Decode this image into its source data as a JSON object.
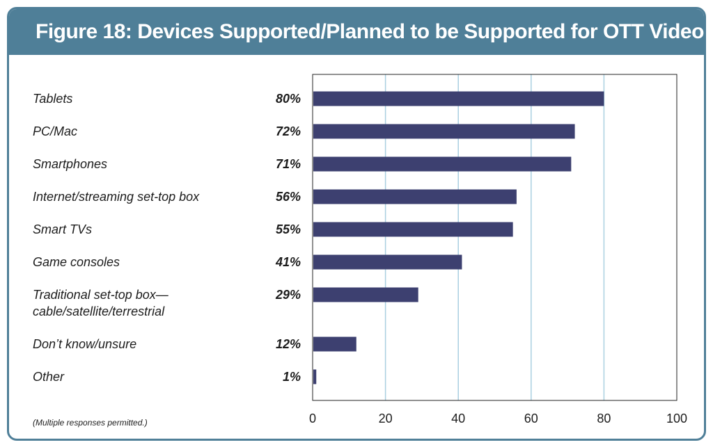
{
  "figure": {
    "title": "Figure 18:  Devices Supported/Planned to be Supported for OTT Video",
    "note": "(Multiple responses permitted.)"
  },
  "colors": {
    "header": "#4f7f98",
    "bar": "#3d4070",
    "grid": "#a9cfe0"
  },
  "chart_data": {
    "type": "bar",
    "orientation": "horizontal",
    "title": "Figure 18:  Devices Supported/Planned to be Supported for OTT Video",
    "categories": [
      [
        "Tablets"
      ],
      [
        "PC/Mac"
      ],
      [
        "Smartphones"
      ],
      [
        "Internet/streaming set-top box"
      ],
      [
        "Smart TVs"
      ],
      [
        "Game consoles"
      ],
      [
        "Traditional set-top box—",
        "cable/satellite/terrestrial"
      ],
      [
        "Don’t know/unsure"
      ],
      [
        "Other"
      ]
    ],
    "values": [
      80,
      72,
      71,
      56,
      55,
      41,
      29,
      12,
      1
    ],
    "value_labels": [
      "80%",
      "72%",
      "71%",
      "56%",
      "55%",
      "41%",
      "29%",
      "12%",
      "1%"
    ],
    "xlim": [
      0,
      100
    ],
    "xticks": [
      0,
      20,
      40,
      60,
      80,
      100
    ],
    "grid": true
  }
}
